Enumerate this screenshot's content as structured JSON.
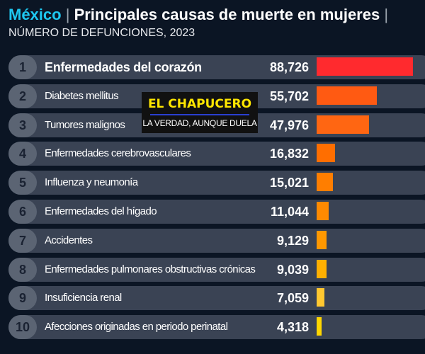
{
  "chart_data": {
    "type": "bar",
    "orientation": "horizontal",
    "title_country": "México",
    "title": "Principales causas de muerte en mujeres",
    "subtitle": "NÚMERO DE DEFUNCIONES, 2023",
    "ranks": [
      "1",
      "2",
      "3",
      "4",
      "5",
      "6",
      "7",
      "8",
      "9",
      "10"
    ],
    "categories": [
      "Enfermedades del corazón",
      "Diabetes mellitus",
      "Tumores malignos",
      "Enfermedades cerebrovasculares",
      "Influenza y neumonía",
      "Enfermedades del hígado",
      "Accidentes",
      "Enfermedades pulmonares obstructivas crónicas",
      "Insuficiencia renal",
      "Afecciones originadas en periodo perinatal"
    ],
    "values": [
      88726,
      55702,
      47976,
      16832,
      15021,
      11044,
      9129,
      9039,
      7059,
      4318
    ],
    "value_labels": [
      "88,726",
      "55,702",
      "47,976",
      "16,832",
      "15,021",
      "11,044",
      "9,129",
      "9,039",
      "7,059",
      "4,318"
    ],
    "colors": [
      "#ff2a2e",
      "#ff5a12",
      "#ff6612",
      "#ff6e00",
      "#ff7e00",
      "#ff8a00",
      "#ff9800",
      "#ffb000",
      "#ffc830",
      "#ffd600"
    ]
  },
  "watermark": {
    "name": "EL CHAPUCERO",
    "tagline": "LA VERDAD, AUNQUE DUELA"
  }
}
